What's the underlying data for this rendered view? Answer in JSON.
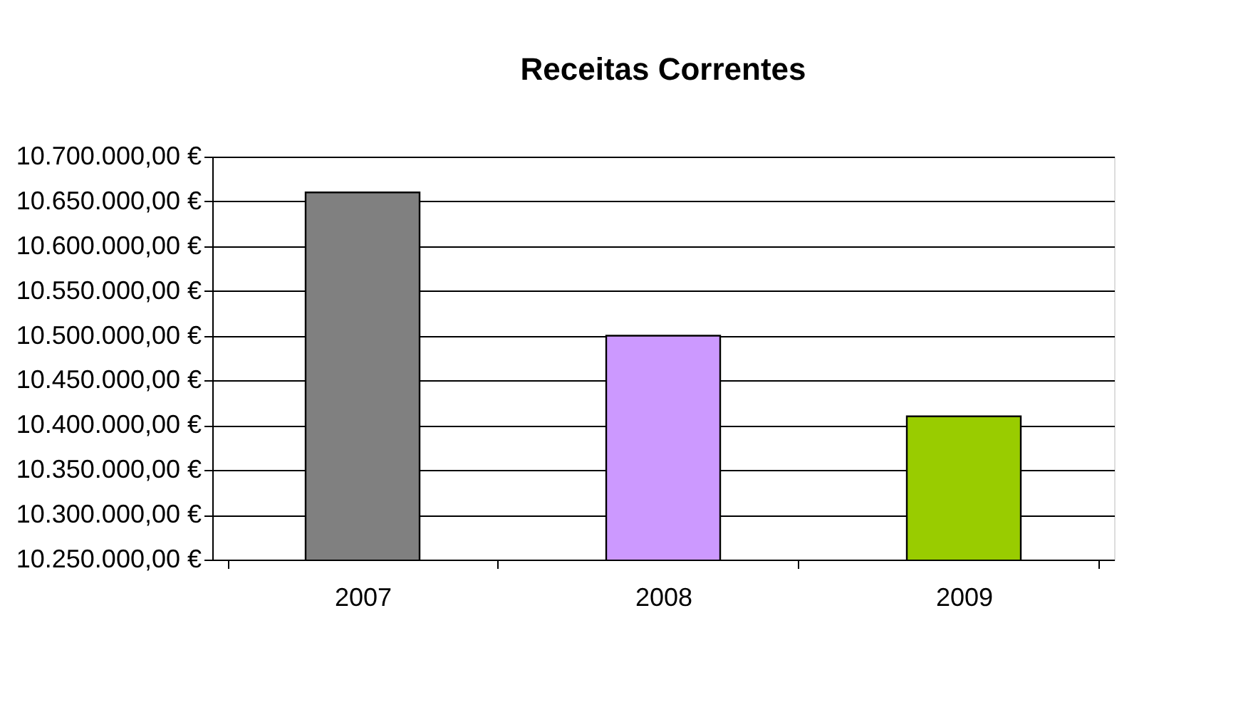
{
  "chart_data": {
    "type": "bar",
    "title": "Receitas Correntes",
    "categories": [
      "2007",
      "2008",
      "2009"
    ],
    "values": [
      10660000,
      10500000,
      10410000
    ],
    "colors": [
      "#808080",
      "#cc99ff",
      "#99cc00"
    ],
    "ylim": [
      10250000,
      10700000
    ],
    "yticks": [
      {
        "value": 10250000,
        "label": "10.250.000,00 €"
      },
      {
        "value": 10300000,
        "label": "10.300.000,00 €"
      },
      {
        "value": 10350000,
        "label": "10.350.000,00 €"
      },
      {
        "value": 10400000,
        "label": "10.400.000,00 €"
      },
      {
        "value": 10450000,
        "label": "10.450.000,00 €"
      },
      {
        "value": 10500000,
        "label": "10.500.000,00 €"
      },
      {
        "value": 10550000,
        "label": "10.550.000,00 €"
      },
      {
        "value": 10600000,
        "label": "10.600.000,00 €"
      },
      {
        "value": 10650000,
        "label": "10.650.000,00 €"
      },
      {
        "value": 10700000,
        "label": "10.700.000,00 €"
      }
    ],
    "grid": "y"
  }
}
